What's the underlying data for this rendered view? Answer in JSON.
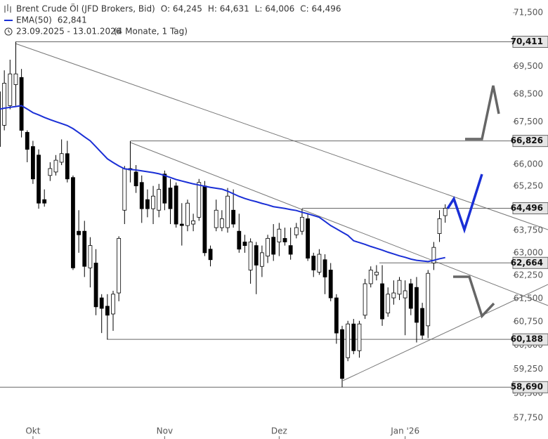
{
  "chart_data": {
    "type": "candlestick",
    "title": "Brent Crude Öl (JFD Brokers, Bid)",
    "quote_labels": [
      {
        "value": 64.245,
        "label": "O: 64,245"
      },
      {
        "value": 64.631,
        "label": "H: 64,631"
      },
      {
        "value": 64.006,
        "label": "L: 64,006"
      },
      {
        "value": 64.496,
        "label": "C: 64,496"
      }
    ],
    "range_label": "23.09.2025 - 13.01.2026",
    "period_label": "(4 Monate, 1 Tag)",
    "categories": [
      null,
      null,
      null,
      null,
      null,
      null,
      "Okt",
      null,
      null,
      null,
      null,
      null,
      null,
      null,
      null,
      null,
      null,
      null,
      null,
      null,
      null,
      null,
      null,
      null,
      null,
      null,
      null,
      null,
      null,
      "Nov",
      null,
      null,
      null,
      null,
      null,
      null,
      null,
      null,
      null,
      null,
      null,
      null,
      null,
      null,
      null,
      null,
      null,
      null,
      null,
      "Dez",
      null,
      null,
      null,
      null,
      null,
      null,
      null,
      null,
      null,
      null,
      null,
      null,
      null,
      null,
      null,
      null,
      null,
      null,
      null,
      null,
      null,
      "Jan '26",
      null,
      null,
      null,
      null,
      null,
      null,
      null
    ],
    "open": [
      68.58,
      67.38,
      68.08,
      68.84,
      69.1,
      67.13,
      66.63,
      66.33,
      64.79,
      65.62,
      65.74,
      66.08,
      66.38,
      65.55,
      63.72,
      63.72,
      62.5,
      62.66,
      61.52,
      61.25,
      61.0,
      61.68,
      64.43,
      65.86,
      65.74,
      65.38,
      64.79,
      64.48,
      64.43,
      65.67,
      65.19,
      65.26,
      63.96,
      63.91,
      63.96,
      64.19,
      65.26,
      63.12,
      63.84,
      63.84,
      63.84,
      64.43,
      63.72,
      63.36,
      62.43,
      63.24,
      62.55,
      62.89,
      63.52,
      63.36,
      63.48,
      63.24,
      63.6,
      63.72,
      64.14,
      62.89,
      62.36,
      62.77,
      62.43,
      61.52,
      60.5,
      59.61,
      60.68,
      59.83,
      60.96,
      61.98,
      62.27,
      61.98,
      61.03,
      61.52,
      61.64,
      61.52,
      61.98,
      61.86,
      61.18,
      60.62,
      62.66,
      63.64,
      64.245
    ],
    "high": [
      68.84,
      69.36,
      69.75,
      70.411,
      69.41,
      67.2,
      66.83,
      66.53,
      65.14,
      66.08,
      66.33,
      66.88,
      66.83,
      65.62,
      64.43,
      64.07,
      63.52,
      63.12,
      61.64,
      61.64,
      61.75,
      63.55,
      65.95,
      66.826,
      65.98,
      65.62,
      65.14,
      65.26,
      65.33,
      65.79,
      65.5,
      65.38,
      64.67,
      64.79,
      64.31,
      65.5,
      65.43,
      63.24,
      64.79,
      64.43,
      65.19,
      65.14,
      64.31,
      63.6,
      63.48,
      63.36,
      63.24,
      63.6,
      63.96,
      64.0,
      63.84,
      63.84,
      64.0,
      64.48,
      64.31,
      63.0,
      63.12,
      62.95,
      62.66,
      61.64,
      60.62,
      60.78,
      60.84,
      60.78,
      62.14,
      62.55,
      62.59,
      62.59,
      61.86,
      62.09,
      62.2,
      62.09,
      62.14,
      62.2,
      61.36,
      62.43,
      63.36,
      64.43,
      64.631
    ],
    "low": [
      66.63,
      67.2,
      67.95,
      68.08,
      66.95,
      66.08,
      65.33,
      64.48,
      64.55,
      65.43,
      65.62,
      65.98,
      65.38,
      62.43,
      63.0,
      62.2,
      61.86,
      60.96,
      60.39,
      60.188,
      60.46,
      61.41,
      63.96,
      65.38,
      65.02,
      64.0,
      64.19,
      63.96,
      64.19,
      64.43,
      63.96,
      63.84,
      63.24,
      63.72,
      63.72,
      64.07,
      62.89,
      62.55,
      63.72,
      63.72,
      63.67,
      63.84,
      63.0,
      63.0,
      61.98,
      61.64,
      62.2,
      62.66,
      62.73,
      62.89,
      63.24,
      62.77,
      63.48,
      63.6,
      62.73,
      62.2,
      62.27,
      61.64,
      61.41,
      60.05,
      58.69,
      59.5,
      59.72,
      59.61,
      60.84,
      61.86,
      62.09,
      60.62,
      60.91,
      61.3,
      61.45,
      60.32,
      60.96,
      60.09,
      60.19,
      60.23,
      62.43,
      63.36,
      64.006
    ],
    "close": [
      66.63,
      68.89,
      69.23,
      69.23,
      67.2,
      66.53,
      65.5,
      64.67,
      64.67,
      65.86,
      66.15,
      66.38,
      65.5,
      62.5,
      63.6,
      62.55,
      63.24,
      61.23,
      61.18,
      60.96,
      61.64,
      63.48,
      65.86,
      65.81,
      65.26,
      64.48,
      64.48,
      64.91,
      65.14,
      64.67,
      64.48,
      63.96,
      63.91,
      64.67,
      64.07,
      65.38,
      63.0,
      62.77,
      64.43,
      64.14,
      64.91,
      63.96,
      63.12,
      63.24,
      63.36,
      62.59,
      63.0,
      63.48,
      62.95,
      63.79,
      63.36,
      62.95,
      63.84,
      64.19,
      62.82,
      62.43,
      62.95,
      62.2,
      61.52,
      60.39,
      58.96,
      60.68,
      59.83,
      60.68,
      61.98,
      62.43,
      62.36,
      60.84,
      61.64,
      61.68,
      62.09,
      61.75,
      61.18,
      60.73,
      60.32,
      62.32,
      63.18,
      64.14,
      64.496
    ],
    "up_color": "#ffffff",
    "down_color": "#000000",
    "ema": {
      "name": "EMA(50)",
      "color": "#1a2fd6",
      "value_label": {
        "value": 62.841,
        "label": "62,841"
      },
      "values": [
        67.95,
        67.99,
        68.02,
        68.05,
        68.08,
        67.96,
        67.83,
        67.75,
        67.66,
        67.58,
        67.51,
        67.44,
        67.37,
        67.26,
        67.12,
        66.97,
        66.83,
        66.62,
        66.41,
        66.2,
        66.07,
        65.95,
        65.85,
        65.83,
        65.81,
        65.78,
        65.75,
        65.72,
        65.68,
        65.62,
        65.55,
        65.48,
        65.43,
        65.38,
        65.33,
        65.29,
        65.25,
        65.21,
        65.18,
        65.15,
        65.08,
        64.99,
        64.9,
        64.83,
        64.77,
        64.72,
        64.66,
        64.61,
        64.55,
        64.52,
        64.49,
        64.45,
        64.42,
        64.36,
        64.31,
        64.25,
        64.19,
        64.05,
        63.91,
        63.8,
        63.69,
        63.58,
        63.4,
        63.34,
        63.28,
        63.21,
        63.15,
        63.09,
        63.02,
        62.96,
        62.9,
        62.85,
        62.79,
        62.75,
        62.73,
        62.71,
        62.75,
        62.8,
        62.841
      ]
    },
    "ylim": [
      57.64,
      71.98
    ],
    "log_y": true,
    "yticks": [
      {
        "value": 71.5,
        "label": "71,500"
      },
      {
        "value": 69.5,
        "label": "69,500"
      },
      {
        "value": 68.5,
        "label": "68,500"
      },
      {
        "value": 67.5,
        "label": "67,500"
      },
      {
        "value": 66,
        "label": "66,000"
      },
      {
        "value": 65.25,
        "label": "65,250"
      },
      {
        "value": 63.75,
        "label": "63,750"
      },
      {
        "value": 63,
        "label": "63,000"
      },
      {
        "value": 62.25,
        "label": "62,250"
      },
      {
        "value": 61.5,
        "label": "61,500"
      },
      {
        "value": 60.75,
        "label": "60,750"
      },
      {
        "value": 60,
        "label": "60,000"
      },
      {
        "value": 59.25,
        "label": "59,250"
      },
      {
        "value": 58.5,
        "label": "58,500"
      },
      {
        "value": 57.75,
        "label": "57,750"
      }
    ],
    "levels": [
      {
        "value": 70.411,
        "label": "70,411"
      },
      {
        "value": 66.826,
        "label": "66,826"
      },
      {
        "value": 64.496,
        "label": "64,496"
      },
      {
        "value": 62.664,
        "label": "62,664"
      },
      {
        "value": 60.188,
        "label": "60,188"
      },
      {
        "value": 58.69,
        "label": "58,690"
      }
    ]
  }
}
